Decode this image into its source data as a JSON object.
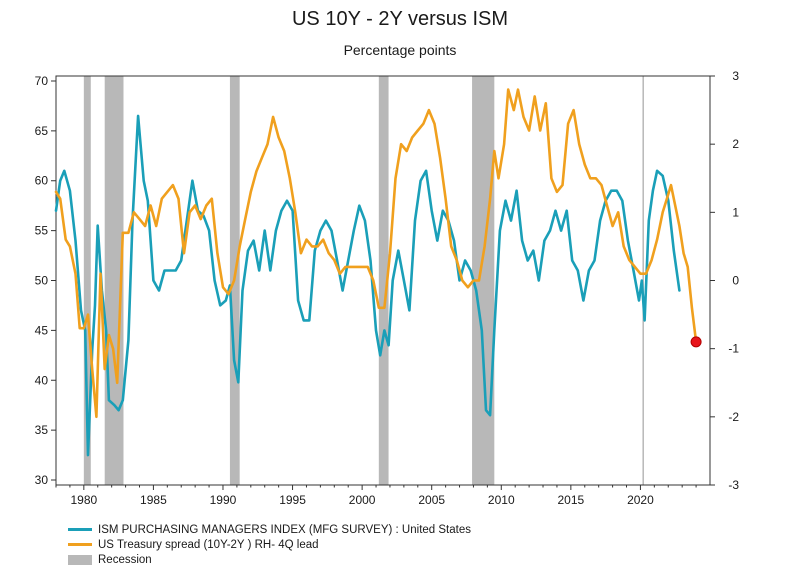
{
  "chart_data": {
    "type": "line",
    "title": "US 10Y - 2Y  versus ISM",
    "subtitle": "Percentage points",
    "x_range": [
      1978,
      2025
    ],
    "x_ticks": [
      1980,
      1985,
      1990,
      1995,
      2000,
      2005,
      2010,
      2015,
      2020
    ],
    "y_left": {
      "range": [
        29.5,
        70.5
      ],
      "ticks": [
        30,
        35,
        40,
        45,
        50,
        55,
        60,
        65,
        70
      ]
    },
    "y_right": {
      "range": [
        -3,
        3
      ],
      "ticks": [
        -3,
        -2,
        -1,
        0,
        1,
        2,
        3
      ]
    },
    "recessions": [
      [
        1980.0,
        1980.5
      ],
      [
        1981.5,
        1982.85
      ],
      [
        1990.5,
        1991.2
      ],
      [
        2001.2,
        2001.9
      ],
      [
        2007.9,
        2009.5
      ]
    ],
    "marker_line_x": 2020.2,
    "series": [
      {
        "name": "ISM PURCHASING MANAGERS INDEX (MFG SURVEY) : United States",
        "axis": "left",
        "color": "#1a9fb8",
        "points": [
          [
            1978.0,
            57.0
          ],
          [
            1978.3,
            60.0
          ],
          [
            1978.6,
            61.0
          ],
          [
            1979.0,
            59.0
          ],
          [
            1979.4,
            54.0
          ],
          [
            1979.8,
            47.0
          ],
          [
            1980.1,
            45.0
          ],
          [
            1980.3,
            32.5
          ],
          [
            1980.6,
            43.0
          ],
          [
            1980.8,
            47.5
          ],
          [
            1981.0,
            55.5
          ],
          [
            1981.3,
            49.0
          ],
          [
            1981.6,
            45.0
          ],
          [
            1981.8,
            38.0
          ],
          [
            1982.2,
            37.5
          ],
          [
            1982.5,
            37.0
          ],
          [
            1982.8,
            38.0
          ],
          [
            1983.2,
            44.0
          ],
          [
            1983.5,
            56.0
          ],
          [
            1983.9,
            66.5
          ],
          [
            1984.3,
            60.0
          ],
          [
            1984.6,
            58.0
          ],
          [
            1985.0,
            50.0
          ],
          [
            1985.4,
            49.0
          ],
          [
            1985.8,
            51.0
          ],
          [
            1986.2,
            51.0
          ],
          [
            1986.6,
            51.0
          ],
          [
            1987.0,
            52.0
          ],
          [
            1987.4,
            56.0
          ],
          [
            1987.8,
            60.0
          ],
          [
            1988.2,
            57.0
          ],
          [
            1988.6,
            56.5
          ],
          [
            1989.0,
            55.0
          ],
          [
            1989.4,
            50.0
          ],
          [
            1989.8,
            47.5
          ],
          [
            1990.2,
            48.0
          ],
          [
            1990.5,
            49.5
          ],
          [
            1990.8,
            42.0
          ],
          [
            1991.1,
            39.8
          ],
          [
            1991.4,
            49.0
          ],
          [
            1991.8,
            53.0
          ],
          [
            1992.2,
            54.0
          ],
          [
            1992.6,
            51.0
          ],
          [
            1993.0,
            55.0
          ],
          [
            1993.4,
            51.0
          ],
          [
            1993.8,
            55.0
          ],
          [
            1994.2,
            57.0
          ],
          [
            1994.6,
            58.0
          ],
          [
            1995.0,
            57.0
          ],
          [
            1995.4,
            48.0
          ],
          [
            1995.8,
            46.0
          ],
          [
            1996.2,
            46.0
          ],
          [
            1996.6,
            53.0
          ],
          [
            1997.0,
            55.0
          ],
          [
            1997.4,
            56.0
          ],
          [
            1997.8,
            55.0
          ],
          [
            1998.2,
            52.0
          ],
          [
            1998.6,
            49.0
          ],
          [
            1999.0,
            52.0
          ],
          [
            1999.4,
            55.0
          ],
          [
            1999.8,
            57.5
          ],
          [
            2000.2,
            56.0
          ],
          [
            2000.6,
            52.0
          ],
          [
            2001.0,
            45.0
          ],
          [
            2001.3,
            42.5
          ],
          [
            2001.6,
            45.0
          ],
          [
            2001.9,
            43.5
          ],
          [
            2002.2,
            50.0
          ],
          [
            2002.6,
            53.0
          ],
          [
            2003.0,
            50.0
          ],
          [
            2003.4,
            47.0
          ],
          [
            2003.8,
            56.0
          ],
          [
            2004.2,
            60.0
          ],
          [
            2004.6,
            61.0
          ],
          [
            2005.0,
            57.0
          ],
          [
            2005.4,
            54.0
          ],
          [
            2005.8,
            57.0
          ],
          [
            2006.2,
            56.0
          ],
          [
            2006.6,
            54.0
          ],
          [
            2007.0,
            50.0
          ],
          [
            2007.4,
            52.0
          ],
          [
            2007.8,
            51.0
          ],
          [
            2008.2,
            49.0
          ],
          [
            2008.6,
            45.0
          ],
          [
            2008.9,
            37.0
          ],
          [
            2009.2,
            36.5
          ],
          [
            2009.5,
            45.0
          ],
          [
            2009.9,
            55.0
          ],
          [
            2010.3,
            58.0
          ],
          [
            2010.7,
            56.0
          ],
          [
            2011.1,
            59.0
          ],
          [
            2011.5,
            54.0
          ],
          [
            2011.9,
            52.0
          ],
          [
            2012.3,
            53.0
          ],
          [
            2012.7,
            50.0
          ],
          [
            2013.1,
            54.0
          ],
          [
            2013.5,
            55.0
          ],
          [
            2013.9,
            57.0
          ],
          [
            2014.3,
            55.0
          ],
          [
            2014.7,
            57.0
          ],
          [
            2015.1,
            52.0
          ],
          [
            2015.5,
            51.0
          ],
          [
            2015.9,
            48.0
          ],
          [
            2016.3,
            51.0
          ],
          [
            2016.7,
            52.0
          ],
          [
            2017.1,
            56.0
          ],
          [
            2017.5,
            58.0
          ],
          [
            2017.9,
            59.0
          ],
          [
            2018.3,
            59.0
          ],
          [
            2018.7,
            58.0
          ],
          [
            2019.1,
            54.0
          ],
          [
            2019.5,
            51.0
          ],
          [
            2019.9,
            48.0
          ],
          [
            2020.1,
            50.0
          ],
          [
            2020.3,
            46.0
          ],
          [
            2020.6,
            56.0
          ],
          [
            2020.9,
            59.0
          ],
          [
            2021.2,
            61.0
          ],
          [
            2021.6,
            60.5
          ],
          [
            2022.0,
            58.0
          ],
          [
            2022.4,
            53.0
          ],
          [
            2022.8,
            49.0
          ]
        ]
      },
      {
        "name": "US Treasury spread (10Y-2Y ) RH- 4Q lead",
        "axis": "right",
        "color": "#f0a01e",
        "points": [
          [
            1978.0,
            1.3
          ],
          [
            1978.3,
            1.2
          ],
          [
            1978.7,
            0.6
          ],
          [
            1979.0,
            0.5
          ],
          [
            1979.4,
            0.1
          ],
          [
            1979.7,
            -0.7
          ],
          [
            1980.0,
            -0.7
          ],
          [
            1980.3,
            -0.5
          ],
          [
            1980.6,
            -1.3
          ],
          [
            1980.9,
            -2.0
          ],
          [
            1981.2,
            0.1
          ],
          [
            1981.5,
            -1.3
          ],
          [
            1981.8,
            -0.8
          ],
          [
            1982.1,
            -1.0
          ],
          [
            1982.4,
            -1.5
          ],
          [
            1982.8,
            0.7
          ],
          [
            1983.2,
            0.7
          ],
          [
            1983.6,
            1.0
          ],
          [
            1984.0,
            0.9
          ],
          [
            1984.4,
            0.8
          ],
          [
            1984.8,
            1.1
          ],
          [
            1985.2,
            0.8
          ],
          [
            1985.6,
            1.2
          ],
          [
            1986.0,
            1.3
          ],
          [
            1986.4,
            1.4
          ],
          [
            1986.8,
            1.2
          ],
          [
            1987.2,
            0.4
          ],
          [
            1987.6,
            1.0
          ],
          [
            1988.0,
            1.1
          ],
          [
            1988.4,
            0.9
          ],
          [
            1988.8,
            1.1
          ],
          [
            1989.2,
            1.2
          ],
          [
            1989.6,
            0.4
          ],
          [
            1990.0,
            -0.1
          ],
          [
            1990.4,
            -0.2
          ],
          [
            1990.8,
            0.0
          ],
          [
            1991.2,
            0.5
          ],
          [
            1991.6,
            0.9
          ],
          [
            1992.0,
            1.3
          ],
          [
            1992.4,
            1.6
          ],
          [
            1992.8,
            1.8
          ],
          [
            1993.2,
            2.0
          ],
          [
            1993.6,
            2.4
          ],
          [
            1994.0,
            2.1
          ],
          [
            1994.4,
            1.9
          ],
          [
            1994.8,
            1.5
          ],
          [
            1995.2,
            1.0
          ],
          [
            1995.6,
            0.4
          ],
          [
            1996.0,
            0.6
          ],
          [
            1996.4,
            0.5
          ],
          [
            1996.8,
            0.5
          ],
          [
            1997.2,
            0.6
          ],
          [
            1997.6,
            0.4
          ],
          [
            1998.0,
            0.3
          ],
          [
            1998.4,
            0.1
          ],
          [
            1998.8,
            0.2
          ],
          [
            1999.2,
            0.2
          ],
          [
            1999.6,
            0.2
          ],
          [
            2000.0,
            0.2
          ],
          [
            2000.4,
            0.2
          ],
          [
            2000.8,
            0.0
          ],
          [
            2001.2,
            -0.4
          ],
          [
            2001.6,
            -0.4
          ],
          [
            2002.0,
            0.4
          ],
          [
            2002.4,
            1.5
          ],
          [
            2002.8,
            2.0
          ],
          [
            2003.2,
            1.9
          ],
          [
            2003.6,
            2.1
          ],
          [
            2004.0,
            2.2
          ],
          [
            2004.4,
            2.3
          ],
          [
            2004.8,
            2.5
          ],
          [
            2005.2,
            2.3
          ],
          [
            2005.6,
            1.8
          ],
          [
            2006.0,
            1.2
          ],
          [
            2006.4,
            0.5
          ],
          [
            2006.8,
            0.3
          ],
          [
            2007.2,
            0.0
          ],
          [
            2007.6,
            -0.1
          ],
          [
            2008.0,
            0.0
          ],
          [
            2008.4,
            0.0
          ],
          [
            2008.8,
            0.5
          ],
          [
            2009.2,
            1.2
          ],
          [
            2009.5,
            1.9
          ],
          [
            2009.8,
            1.5
          ],
          [
            2010.2,
            2.0
          ],
          [
            2010.5,
            2.8
          ],
          [
            2010.9,
            2.5
          ],
          [
            2011.2,
            2.8
          ],
          [
            2011.6,
            2.4
          ],
          [
            2012.0,
            2.2
          ],
          [
            2012.4,
            2.7
          ],
          [
            2012.8,
            2.2
          ],
          [
            2013.2,
            2.6
          ],
          [
            2013.6,
            1.5
          ],
          [
            2014.0,
            1.3
          ],
          [
            2014.4,
            1.4
          ],
          [
            2014.8,
            2.3
          ],
          [
            2015.2,
            2.5
          ],
          [
            2015.6,
            2.0
          ],
          [
            2016.0,
            1.7
          ],
          [
            2016.4,
            1.5
          ],
          [
            2016.8,
            1.5
          ],
          [
            2017.2,
            1.4
          ],
          [
            2017.6,
            1.1
          ],
          [
            2018.0,
            0.8
          ],
          [
            2018.4,
            1.0
          ],
          [
            2018.8,
            0.5
          ],
          [
            2019.2,
            0.3
          ],
          [
            2019.6,
            0.2
          ],
          [
            2020.0,
            0.1
          ],
          [
            2020.4,
            0.1
          ],
          [
            2020.8,
            0.3
          ],
          [
            2021.2,
            0.6
          ],
          [
            2021.6,
            1.0
          ],
          [
            2021.9,
            1.2
          ],
          [
            2022.2,
            1.4
          ],
          [
            2022.5,
            1.1
          ],
          [
            2022.8,
            0.8
          ],
          [
            2023.1,
            0.4
          ],
          [
            2023.4,
            0.2
          ],
          [
            2023.7,
            -0.4
          ],
          [
            2024.0,
            -0.9
          ]
        ]
      }
    ],
    "highlight_point": {
      "x": 2024.0,
      "y": -0.9,
      "axis": "right",
      "color": "#e8151c"
    },
    "legend": [
      {
        "label": "ISM PURCHASING MANAGERS INDEX (MFG SURVEY) : United States",
        "color": "#1a9fb8",
        "kind": "line"
      },
      {
        "label": "US Treasury spread (10Y-2Y ) RH- 4Q lead",
        "color": "#f0a01e",
        "kind": "line"
      },
      {
        "label": "Recession",
        "color": "#b8b8b8",
        "kind": "box"
      }
    ]
  }
}
